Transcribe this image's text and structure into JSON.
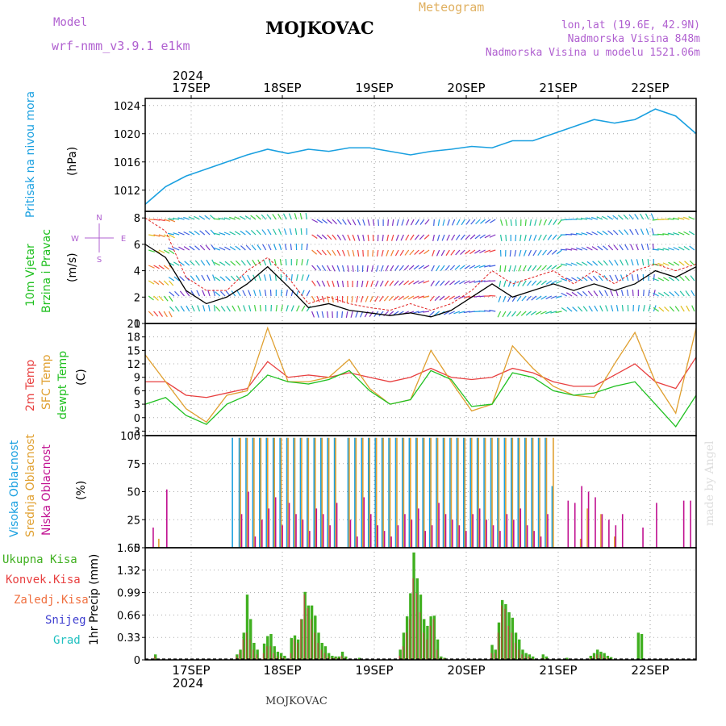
{
  "header": {
    "model_label": "Model",
    "model_name": "wrf-nmm_v3.9.1 e1km",
    "station": "MOJKOVAC",
    "product": "Meteogram",
    "coords": "lon,lat (19.6E, 42.9N)",
    "altitude": "Nadmorska Visina 848m",
    "model_altitude": "Nadmorska Visina u modelu 1521.06m",
    "year_top": "2024",
    "year_bottom": "2024",
    "footer_station": "MOJKOVAC",
    "credit": "made by Angel"
  },
  "colors": {
    "pressure": "#1aa0e0",
    "wind_speed": "#000000",
    "gust": "#e02020",
    "temp2m": "#e84040",
    "sfc_temp": "#e0a030",
    "dewpoint": "#20c020",
    "high_cloud": "#1aa0e0",
    "mid_cloud": "#e0a030",
    "low_cloud": "#c01090",
    "precip_total": "#40b020",
    "precip_conv": "#c04040",
    "accent_purple": "#b060d0",
    "accent_orange": "#e0b060"
  },
  "days": [
    "17SEP",
    "18SEP",
    "19SEP",
    "20SEP",
    "21SEP",
    "22SEP"
  ],
  "panels": {
    "pressure": {
      "labels": [
        "Pritisak na nivou mora"
      ],
      "unit": "(hPa)"
    },
    "wind": {
      "labels": [
        "10m Vjetar",
        "Brzina i Pravac"
      ],
      "unit": "(m/s)",
      "compass": {
        "n": "N",
        "s": "S",
        "e": "E",
        "w": "W"
      }
    },
    "temp": {
      "labels": [
        "2m Temp",
        "SFC Temp",
        "dewpt Temp"
      ],
      "unit": "(C)"
    },
    "cloud": {
      "labels": [
        "Visoka Oblacnost",
        "Srednja Oblacnost",
        "Niska Oblacnost"
      ],
      "unit": "(%)"
    },
    "precip": {
      "legend": [
        "Ukupna Kisa",
        "Konvek.Kisa",
        "Zaledj.Kisa",
        "Snijeg",
        "Grad"
      ],
      "unit": "1hr Precip (mm)"
    }
  },
  "chart_data": [
    {
      "type": "line",
      "name": "pressure",
      "ylim": [
        1009,
        1025
      ],
      "yticks": [
        "1012",
        "1016",
        "1020",
        "1024"
      ],
      "x_hours": [
        0,
        6,
        12,
        18,
        24,
        30,
        36,
        42,
        48,
        54,
        60,
        66,
        72,
        78,
        84,
        90,
        96,
        102,
        108,
        114,
        120,
        126,
        132,
        138,
        144,
        150,
        156,
        162
      ],
      "series": [
        {
          "values": [
            1010.0,
            1012.5,
            1014.0,
            1015.0,
            1016.0,
            1017.0,
            1017.8,
            1017.2,
            1017.8,
            1017.5,
            1018.0,
            1018.0,
            1017.5,
            1017.0,
            1017.5,
            1017.8,
            1018.2,
            1018.0,
            1019.0,
            1019.0,
            1020.0,
            1021.0,
            1022.0,
            1021.5,
            1022.0,
            1023.5,
            1022.5,
            1020.0
          ]
        }
      ]
    },
    {
      "type": "line",
      "name": "wind",
      "ylim": [
        0,
        8.5
      ],
      "yticks": [
        "0",
        "2",
        "4",
        "6",
        "8"
      ],
      "x_hours": [
        0,
        6,
        12,
        18,
        24,
        30,
        36,
        42,
        48,
        54,
        60,
        66,
        72,
        78,
        84,
        90,
        96,
        102,
        108,
        114,
        120,
        126,
        132,
        138,
        144,
        150,
        156,
        162
      ],
      "series": [
        {
          "values": [
            6.0,
            5.0,
            2.5,
            1.5,
            2.0,
            3.0,
            4.3,
            2.8,
            1.2,
            1.5,
            1.0,
            0.8,
            0.6,
            0.8,
            0.5,
            1.0,
            2.0,
            3.0,
            2.0,
            2.5,
            3.0,
            2.5,
            3.0,
            2.5,
            3.0,
            4.0,
            3.5,
            4.3
          ]
        },
        {
          "values": [
            8.0,
            7.0,
            3.5,
            2.5,
            2.5,
            4.0,
            5.0,
            3.5,
            1.5,
            2.0,
            1.5,
            1.2,
            1.0,
            1.5,
            1.0,
            1.5,
            2.5,
            4.0,
            3.0,
            3.5,
            4.0,
            3.0,
            4.0,
            3.0,
            4.0,
            4.5,
            4.0,
            4.5
          ]
        }
      ]
    },
    {
      "type": "line",
      "name": "temperature",
      "ylim": [
        -4,
        21
      ],
      "yticks": [
        "-3",
        "0",
        "3",
        "6",
        "9",
        "12",
        "15",
        "18",
        "21"
      ],
      "x_hours": [
        0,
        6,
        12,
        18,
        24,
        30,
        36,
        42,
        48,
        54,
        60,
        66,
        72,
        78,
        84,
        90,
        96,
        102,
        108,
        114,
        120,
        126,
        132,
        138,
        144,
        150,
        156,
        162
      ],
      "series": [
        {
          "values": [
            8.0,
            8.0,
            5.0,
            4.5,
            5.5,
            6.5,
            12.5,
            9.0,
            9.5,
            9.0,
            10.0,
            9.0,
            8.0,
            9.0,
            11.0,
            9.0,
            8.5,
            9.0,
            11.0,
            10.0,
            8.0,
            7.0,
            7.0,
            9.5,
            12.0,
            8.0,
            6.5,
            13.5
          ]
        },
        {
          "values": [
            14.0,
            8.0,
            2.0,
            -1.0,
            5.0,
            6.0,
            20.0,
            8.0,
            8.0,
            9.0,
            13.0,
            6.5,
            3.0,
            4.0,
            15.0,
            8.0,
            1.5,
            3.0,
            16.0,
            11.0,
            7.0,
            5.0,
            4.5,
            12.0,
            19.0,
            8.0,
            1.0,
            20.0
          ]
        },
        {
          "values": [
            3.0,
            4.5,
            0.5,
            -1.5,
            3.0,
            5.0,
            9.5,
            8.0,
            7.5,
            8.5,
            10.5,
            6.0,
            3.0,
            4.0,
            10.5,
            8.5,
            2.5,
            3.0,
            10.0,
            9.0,
            6.0,
            5.0,
            5.5,
            7.0,
            8.0,
            3.0,
            -2.0,
            5.0
          ]
        }
      ]
    },
    {
      "type": "bar",
      "name": "cloud",
      "ylim": [
        0,
        100
      ],
      "yticks": [
        "0",
        "25",
        "50",
        "75",
        "100"
      ],
      "x_hours": [
        2,
        4,
        6,
        14,
        20,
        24,
        26,
        28,
        30,
        32,
        34,
        36,
        38,
        40,
        42,
        44,
        46,
        48,
        50,
        52,
        54,
        56,
        60,
        62,
        64,
        66,
        68,
        70,
        72,
        74,
        76,
        78,
        80,
        82,
        84,
        86,
        88,
        90,
        92,
        94,
        96,
        98,
        100,
        102,
        104,
        106,
        108,
        110,
        112,
        114,
        116,
        118,
        120,
        124,
        126,
        128,
        130,
        132,
        134,
        136,
        138,
        140,
        142,
        146,
        150,
        158,
        160
      ],
      "series": [
        {
          "name": "Visoka Oblacnost",
          "values": [
            0,
            0,
            0,
            0,
            0,
            0,
            98,
            98,
            98,
            98,
            98,
            98,
            98,
            98,
            98,
            98,
            98,
            98,
            98,
            98,
            98,
            98,
            98,
            98,
            98,
            98,
            98,
            98,
            98,
            98,
            98,
            98,
            98,
            98,
            98,
            98,
            98,
            98,
            98,
            98,
            98,
            98,
            98,
            98,
            98,
            98,
            98,
            98,
            98,
            98,
            98,
            98,
            55,
            0,
            0,
            0,
            0,
            0,
            0,
            0,
            0,
            0,
            0,
            0,
            0,
            0,
            0
          ]
        },
        {
          "name": "Srednja Oblacnost",
          "values": [
            0,
            8,
            0,
            0,
            0,
            0,
            0,
            98,
            98,
            98,
            98,
            98,
            98,
            98,
            98,
            98,
            98,
            98,
            98,
            98,
            98,
            98,
            98,
            98,
            98,
            98,
            98,
            98,
            98,
            98,
            98,
            98,
            98,
            98,
            98,
            98,
            98,
            98,
            98,
            98,
            98,
            98,
            98,
            98,
            98,
            98,
            98,
            98,
            98,
            98,
            98,
            98,
            98,
            0,
            0,
            8,
            35,
            0,
            30,
            0,
            10,
            0,
            0,
            0,
            0,
            0,
            0
          ]
        },
        {
          "name": "Niska Oblacnost",
          "values": [
            18,
            0,
            52,
            0,
            0,
            0,
            0,
            30,
            50,
            10,
            25,
            35,
            45,
            20,
            40,
            30,
            25,
            15,
            35,
            30,
            20,
            40,
            25,
            10,
            45,
            30,
            20,
            15,
            10,
            20,
            30,
            25,
            35,
            15,
            20,
            40,
            30,
            25,
            20,
            15,
            30,
            35,
            25,
            20,
            15,
            30,
            25,
            35,
            20,
            15,
            10,
            30,
            0,
            42,
            40,
            55,
            50,
            45,
            30,
            25,
            20,
            30,
            0,
            18,
            40,
            42,
            42
          ]
        }
      ]
    },
    {
      "type": "bar",
      "name": "precipitation",
      "ylim": [
        0,
        1.65
      ],
      "yticks": [
        "0",
        "0.33",
        "0.66",
        "0.99",
        "1.32",
        "1.65"
      ],
      "x_hours": [
        3,
        27,
        28,
        29,
        30,
        31,
        32,
        33,
        35,
        36,
        37,
        38,
        39,
        40,
        41,
        43,
        44,
        45,
        46,
        47,
        48,
        49,
        50,
        51,
        52,
        53,
        54,
        55,
        56,
        57,
        58,
        59,
        63,
        75,
        76,
        77,
        78,
        79,
        80,
        81,
        82,
        83,
        84,
        85,
        86,
        87,
        88,
        102,
        103,
        104,
        105,
        106,
        107,
        108,
        109,
        110,
        111,
        112,
        113,
        114,
        117,
        118,
        124,
        131,
        132,
        133,
        134,
        135,
        136,
        137,
        145,
        146
      ],
      "series": [
        {
          "name": "Ukupna Kisa",
          "values": [
            0.08,
            0.08,
            0.15,
            0.4,
            0.96,
            0.6,
            0.25,
            0.15,
            0.24,
            0.35,
            0.38,
            0.2,
            0.12,
            0.1,
            0.06,
            0.32,
            0.36,
            0.3,
            0.6,
            1.0,
            0.8,
            0.8,
            0.65,
            0.4,
            0.25,
            0.2,
            0.1,
            0.06,
            0.05,
            0.05,
            0.12,
            0.05,
            0.03,
            0.15,
            0.4,
            0.64,
            0.98,
            1.58,
            1.2,
            0.96,
            0.6,
            0.5,
            0.64,
            0.65,
            0.3,
            0.05,
            0.03,
            0.22,
            0.15,
            0.55,
            0.88,
            0.82,
            0.7,
            0.62,
            0.4,
            0.3,
            0.15,
            0.1,
            0.08,
            0.05,
            0.08,
            0.05,
            0.03,
            0.06,
            0.1,
            0.15,
            0.12,
            0.1,
            0.06,
            0.04,
            0.4,
            0.38
          ]
        },
        {
          "name": "Konvek.Kisa",
          "values": [
            0.05,
            0.05,
            0.1,
            0.3,
            0.4,
            0.3,
            0.15,
            0.08,
            0.1,
            0.2,
            0.2,
            0.1,
            0.05,
            0.05,
            0.03,
            0.1,
            0.3,
            0.25,
            0.6,
            0.96,
            0.76,
            0.6,
            0.4,
            0.25,
            0.15,
            0.1,
            0.05,
            0.03,
            0.03,
            0.03,
            0.06,
            0.03,
            0.01,
            0.06,
            0.2,
            0.4,
            0.6,
            1.2,
            0.98,
            0.7,
            0.4,
            0.3,
            0.5,
            0.6,
            0.15,
            0.03,
            0.02,
            0.1,
            0.1,
            0.4,
            0.8,
            0.75,
            0.5,
            0.4,
            0.25,
            0.15,
            0.08,
            0.05,
            0.05,
            0.02,
            0.03,
            0.02,
            0.01,
            0.02,
            0.05,
            0.08,
            0.08,
            0.05,
            0.03,
            0.02,
            0.0,
            0.0
          ]
        }
      ]
    }
  ]
}
